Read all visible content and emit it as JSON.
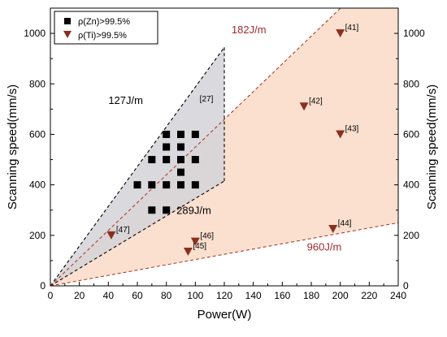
{
  "chart_data": {
    "type": "scatter",
    "xlabel": "Power(W)",
    "ylabel": "Scanning speed(mm/s)",
    "ylabel_right": "Scanning speed(mm/s)",
    "xlim": [
      0,
      240
    ],
    "ylim": [
      0,
      1100
    ],
    "xticks": [
      0,
      20,
      40,
      60,
      80,
      100,
      120,
      140,
      160,
      180,
      200,
      220,
      240
    ],
    "yticks": [
      0,
      200,
      400,
      600,
      800,
      1000
    ],
    "grid": false,
    "legend_position": "top-left",
    "colors": {
      "zn": "#000000",
      "ti": "#8b2f1f",
      "gray_region": "#d4d4d8",
      "orange_region": "#f9d5bf",
      "orange_line": "#b03a2e",
      "label_dark_red": "#a12a2a"
    },
    "series": [
      {
        "name": "ρ(Zn)>99.5%",
        "marker": "square",
        "points": [
          {
            "x": 60,
            "y": 400
          },
          {
            "x": 70,
            "y": 400
          },
          {
            "x": 80,
            "y": 400
          },
          {
            "x": 90,
            "y": 400
          },
          {
            "x": 100,
            "y": 400
          },
          {
            "x": 70,
            "y": 500
          },
          {
            "x": 80,
            "y": 500
          },
          {
            "x": 90,
            "y": 500
          },
          {
            "x": 100,
            "y": 500
          },
          {
            "x": 90,
            "y": 450
          },
          {
            "x": 80,
            "y": 550
          },
          {
            "x": 90,
            "y": 550
          },
          {
            "x": 80,
            "y": 600
          },
          {
            "x": 90,
            "y": 600
          },
          {
            "x": 100,
            "y": 600
          },
          {
            "x": 70,
            "y": 300
          },
          {
            "x": 80,
            "y": 300
          }
        ]
      },
      {
        "name": "ρ(Ti)>99.5%",
        "marker": "triangle-down",
        "points": [
          {
            "x": 200,
            "y": 1000,
            "label": "[41]"
          },
          {
            "x": 175,
            "y": 710,
            "label": "[42]"
          },
          {
            "x": 200,
            "y": 600,
            "label": "[43]"
          },
          {
            "x": 195,
            "y": 225,
            "label": "[44]"
          },
          {
            "x": 95,
            "y": 135,
            "label": "[45]"
          },
          {
            "x": 100,
            "y": 175,
            "label": "[46]"
          },
          {
            "x": 42,
            "y": 200,
            "label": "[47]"
          }
        ]
      }
    ],
    "region_labels": {
      "line_127": "127J/m",
      "line_289": "289J/m",
      "line_182": "182J/m",
      "line_960": "960J/m",
      "ref_27": "[27]"
    }
  }
}
